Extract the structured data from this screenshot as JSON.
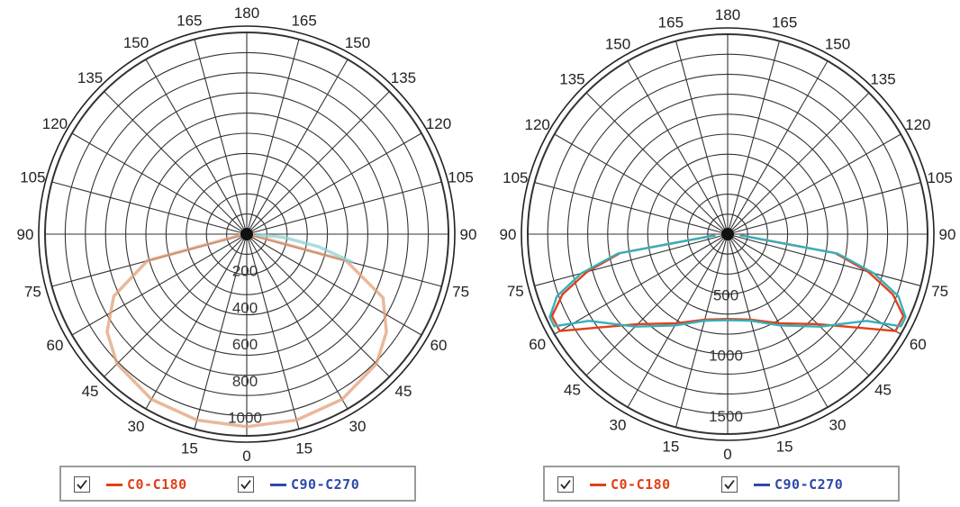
{
  "chart_data": [
    {
      "type": "polar",
      "angle_labels_left": [
        "0",
        "15",
        "30",
        "45",
        "60",
        "75",
        "90",
        "105",
        "120",
        "135",
        "150",
        "165",
        "180"
      ],
      "angle_labels_right": [
        "15",
        "30",
        "45",
        "60",
        "75",
        "90",
        "105",
        "120",
        "135",
        "150",
        "165"
      ],
      "radial_ticks": [
        "200",
        "400",
        "600",
        "800",
        "1000"
      ],
      "rmax": 1100,
      "series": [
        {
          "name": "C0-C180",
          "color": "#e2a07a",
          "points": [
            [
              -85,
              20
            ],
            [
              -75,
              560
            ],
            [
              -65,
              800
            ],
            [
              -55,
              930
            ],
            [
              -45,
              1000
            ],
            [
              -30,
              1040
            ],
            [
              -15,
              1050
            ],
            [
              0,
              1050
            ],
            [
              15,
              1050
            ],
            [
              30,
              1040
            ],
            [
              45,
              1000
            ],
            [
              55,
              930
            ],
            [
              65,
              820
            ],
            [
              75,
              560
            ],
            [
              85,
              20
            ]
          ]
        },
        {
          "name": "C90-C270",
          "color": "#8fd1d6",
          "points": [
            [
              75,
              600
            ],
            [
              80,
              400
            ],
            [
              85,
              200
            ],
            [
              88,
              50
            ]
          ]
        }
      ],
      "legend": [
        {
          "label": "C0-C180",
          "color": "#e0401a",
          "checked": true
        },
        {
          "label": "C90-C270",
          "color": "#2e4aa8",
          "checked": true
        }
      ]
    },
    {
      "type": "polar",
      "angle_labels_left": [
        "0",
        "15",
        "30",
        "45",
        "60",
        "75",
        "90",
        "105",
        "120",
        "135",
        "150",
        "165",
        "180"
      ],
      "angle_labels_right": [
        "15",
        "30",
        "45",
        "60",
        "75",
        "90",
        "105",
        "120",
        "135",
        "150",
        "165"
      ],
      "radial_ticks": [
        "500",
        "1000",
        "1500"
      ],
      "rmax": 1650,
      "series": [
        {
          "name": "C0-C180",
          "color": "#e0401a",
          "points": [
            [
              -85,
              100
            ],
            [
              -80,
              900
            ],
            [
              -75,
              1200
            ],
            [
              -70,
              1450
            ],
            [
              -65,
              1600
            ],
            [
              -60,
              1600
            ],
            [
              -55,
              1350
            ],
            [
              -45,
              1050
            ],
            [
              -30,
              850
            ],
            [
              -15,
              730
            ],
            [
              0,
              700
            ],
            [
              15,
              730
            ],
            [
              30,
              850
            ],
            [
              45,
              1050
            ],
            [
              55,
              1350
            ],
            [
              60,
              1600
            ],
            [
              65,
              1600
            ],
            [
              70,
              1450
            ],
            [
              75,
              1200
            ],
            [
              80,
              900
            ],
            [
              85,
              100
            ]
          ]
        },
        {
          "name": "C90-C270",
          "color": "#34b0bb",
          "points": [
            [
              -85,
              100
            ],
            [
              -80,
              920
            ],
            [
              -75,
              1250
            ],
            [
              -70,
              1500
            ],
            [
              -65,
              1620
            ],
            [
              -62,
              1620
            ],
            [
              -58,
              1350
            ],
            [
              -45,
              1080
            ],
            [
              -30,
              870
            ],
            [
              -15,
              740
            ],
            [
              0,
              710
            ],
            [
              15,
              740
            ],
            [
              30,
              870
            ],
            [
              45,
              1080
            ],
            [
              58,
              1350
            ],
            [
              62,
              1620
            ],
            [
              65,
              1620
            ],
            [
              70,
              1500
            ],
            [
              75,
              1250
            ],
            [
              80,
              920
            ],
            [
              85,
              100
            ]
          ]
        }
      ],
      "legend": [
        {
          "label": "C0-C180",
          "color": "#e0401a",
          "checked": true
        },
        {
          "label": "C90-C270",
          "color": "#2e4aa8",
          "checked": true
        }
      ]
    }
  ]
}
